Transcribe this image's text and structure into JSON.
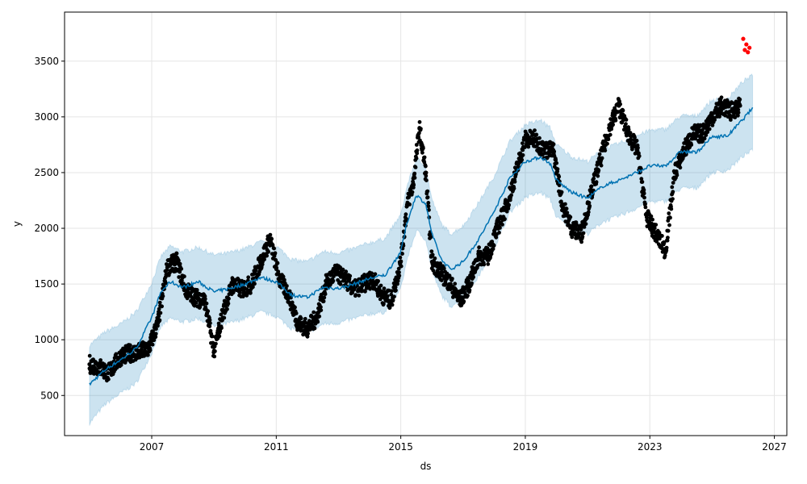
{
  "chart_data": {
    "type": "scatter",
    "xlabel": "ds",
    "ylabel": "y",
    "xlim": [
      2004.2,
      2027.4
    ],
    "ylim": [
      140,
      3940
    ],
    "x_ticks": [
      2007,
      2011,
      2015,
      2019,
      2023,
      2027
    ],
    "x_tick_labels": [
      "2007",
      "2011",
      "2015",
      "2019",
      "2023",
      "2027"
    ],
    "y_ticks": [
      500,
      1000,
      1500,
      2000,
      2500,
      3000,
      3500
    ],
    "y_tick_labels": [
      "500",
      "1000",
      "1500",
      "2000",
      "2500",
      "3000",
      "3500"
    ],
    "grid": true,
    "colors": {
      "observed": "#000000",
      "recent": "#ff0000",
      "forecast": "#0072b2",
      "interval": "#0072b2"
    },
    "series": [
      {
        "kind": "forecast",
        "x": [
          2005.0,
          2005.5,
          2006.0,
          2006.5,
          2007.0,
          2007.3,
          2007.6,
          2008.0,
          2008.5,
          2009.0,
          2009.5,
          2010.0,
          2010.5,
          2011.0,
          2011.5,
          2012.0,
          2012.5,
          2013.0,
          2013.5,
          2014.0,
          2014.5,
          2015.0,
          2015.2,
          2015.5,
          2015.8,
          2016.0,
          2016.3,
          2016.6,
          2017.0,
          2017.5,
          2018.0,
          2018.5,
          2019.0,
          2019.5,
          2019.8,
          2020.0,
          2020.5,
          2021.0,
          2021.5,
          2022.0,
          2022.5,
          2023.0,
          2023.5,
          2024.0,
          2024.5,
          2025.0,
          2025.5,
          2026.0,
          2026.3
        ],
        "yhat": [
          600,
          730,
          820,
          920,
          1200,
          1430,
          1520,
          1470,
          1520,
          1430,
          1460,
          1500,
          1560,
          1520,
          1400,
          1380,
          1470,
          1460,
          1500,
          1550,
          1580,
          1790,
          2050,
          2300,
          2220,
          1950,
          1720,
          1630,
          1700,
          1900,
          2150,
          2450,
          2600,
          2640,
          2580,
          2430,
          2320,
          2270,
          2380,
          2430,
          2490,
          2560,
          2560,
          2690,
          2680,
          2820,
          2830,
          2980,
          3080
        ],
        "yhat_lower": [
          250,
          420,
          520,
          610,
          880,
          1120,
          1190,
          1160,
          1190,
          1120,
          1150,
          1190,
          1250,
          1210,
          1100,
          1060,
          1140,
          1150,
          1190,
          1230,
          1250,
          1460,
          1720,
          1980,
          1900,
          1620,
          1400,
          1300,
          1370,
          1570,
          1820,
          2140,
          2280,
          2320,
          2260,
          2100,
          2000,
          1950,
          2060,
          2110,
          2170,
          2240,
          2240,
          2360,
          2360,
          2500,
          2520,
          2650,
          2700
        ],
        "yhat_upper": [
          950,
          1070,
          1140,
          1250,
          1510,
          1750,
          1840,
          1790,
          1830,
          1760,
          1780,
          1820,
          1880,
          1840,
          1720,
          1700,
          1790,
          1780,
          1820,
          1870,
          1910,
          2120,
          2380,
          2630,
          2550,
          2260,
          2040,
          1950,
          2020,
          2230,
          2470,
          2780,
          2930,
          2970,
          2900,
          2750,
          2640,
          2600,
          2710,
          2760,
          2820,
          2880,
          2890,
          3010,
          3010,
          3150,
          3160,
          3320,
          3370
        ]
      },
      {
        "kind": "observed",
        "x": [
          2005.0,
          2005.3,
          2005.6,
          2006.0,
          2006.3,
          2006.6,
          2006.9,
          2007.2,
          2007.5,
          2007.8,
          2008.1,
          2008.4,
          2008.7,
          2009.0,
          2009.3,
          2009.6,
          2009.9,
          2010.2,
          2010.5,
          2010.8,
          2011.1,
          2011.4,
          2011.7,
          2012.0,
          2012.3,
          2012.6,
          2012.9,
          2013.2,
          2013.5,
          2013.8,
          2014.1,
          2014.4,
          2014.7,
          2015.0,
          2015.2,
          2015.4,
          2015.6,
          2015.8,
          2016.0,
          2016.3,
          2016.6,
          2016.9,
          2017.2,
          2017.5,
          2017.8,
          2018.1,
          2018.4,
          2018.7,
          2019.0,
          2019.3,
          2019.6,
          2019.9,
          2020.2,
          2020.5,
          2020.8,
          2021.1,
          2021.4,
          2021.7,
          2022.0,
          2022.3,
          2022.6,
          2022.9,
          2023.2,
          2023.5,
          2023.8,
          2024.1,
          2024.4,
          2024.7,
          2025.0,
          2025.3,
          2025.6,
          2025.9
        ],
        "y": [
          780,
          760,
          700,
          850,
          880,
          890,
          920,
          1150,
          1650,
          1700,
          1450,
          1380,
          1350,
          900,
          1250,
          1500,
          1450,
          1500,
          1700,
          1900,
          1550,
          1400,
          1150,
          1100,
          1200,
          1500,
          1600,
          1550,
          1450,
          1500,
          1550,
          1400,
          1350,
          1700,
          2200,
          2400,
          2900,
          2500,
          1700,
          1600,
          1500,
          1350,
          1500,
          1750,
          1750,
          2000,
          2200,
          2500,
          2800,
          2800,
          2700,
          2700,
          2200,
          2000,
          1950,
          2300,
          2600,
          2900,
          3100,
          2850,
          2700,
          2100,
          1950,
          1800,
          2500,
          2700,
          2850,
          2850,
          3000,
          3100,
          3050,
          3100
        ]
      },
      {
        "kind": "recent",
        "x": [
          2026.0,
          2026.05,
          2026.1,
          2026.15,
          2026.2
        ],
        "y": [
          3700,
          3600,
          3650,
          3580,
          3620
        ]
      }
    ]
  }
}
